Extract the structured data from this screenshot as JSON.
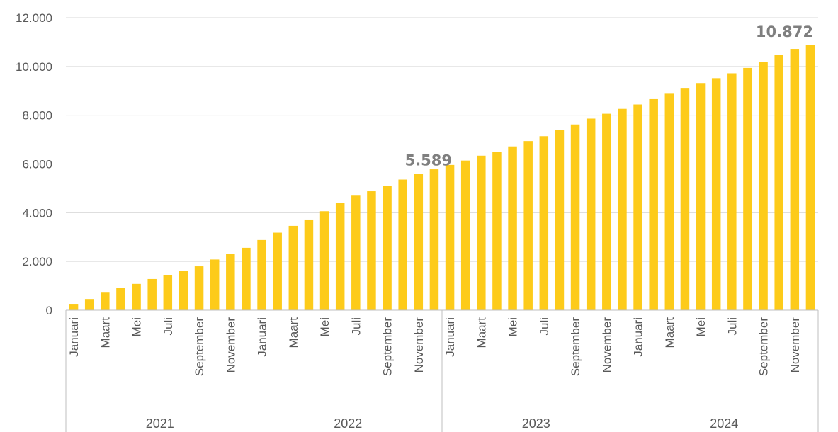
{
  "chart_data": {
    "type": "bar",
    "y_ticks": [
      "0",
      "2.000",
      "4.000",
      "6.000",
      "8.000",
      "10.000",
      "12.000"
    ],
    "ylim": [
      0,
      12000
    ],
    "grid": true,
    "legend": "none",
    "colors": {
      "bar": "#FDCB1A",
      "grid": "#d9d9d9",
      "axis": "#bfbfbf",
      "text": "#595959",
      "label": "#7f7f7f"
    },
    "years": [
      "2021",
      "2022",
      "2023",
      "2024"
    ],
    "month_labels": [
      "Januari",
      "",
      "Maart",
      "",
      "Mei",
      "",
      "Juli",
      "",
      "September",
      "",
      "November",
      ""
    ],
    "values": [
      260,
      460,
      720,
      920,
      1080,
      1280,
      1450,
      1620,
      1800,
      2080,
      2320,
      2560,
      2880,
      3180,
      3460,
      3720,
      4060,
      4400,
      4700,
      4880,
      5100,
      5360,
      5589,
      5780,
      5960,
      6140,
      6340,
      6500,
      6720,
      6940,
      7140,
      7380,
      7620,
      7860,
      8060,
      8260,
      8440,
      8660,
      8880,
      9120,
      9320,
      9520,
      9720,
      9940,
      10180,
      10480,
      10720,
      10872
    ],
    "data_labels": [
      {
        "index": 22,
        "text": "5.589"
      },
      {
        "index": 47,
        "text": "10.872"
      }
    ]
  }
}
